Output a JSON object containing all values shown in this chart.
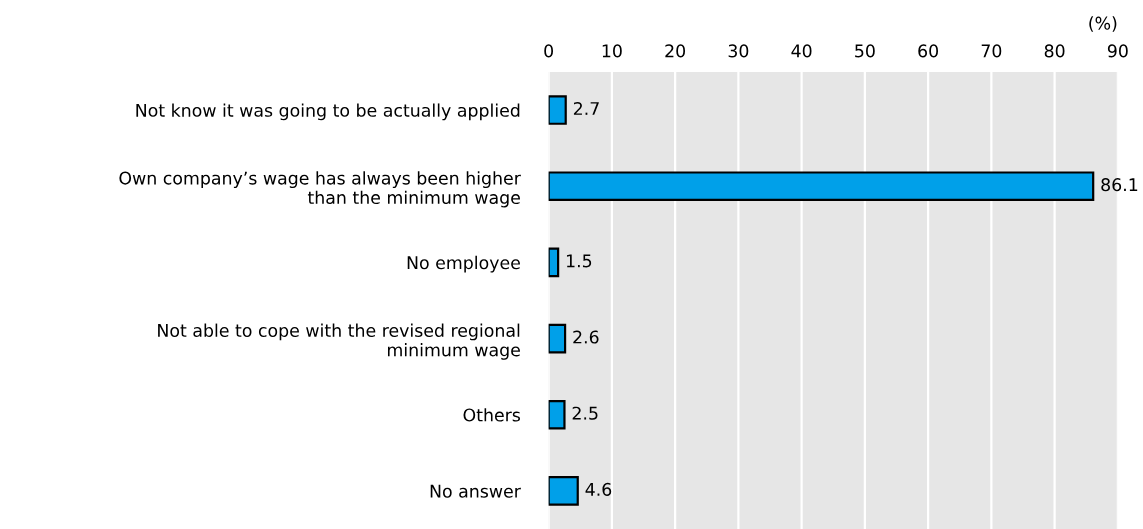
{
  "chart_data": {
    "type": "bar",
    "orientation": "horizontal",
    "xlabel": "(%)",
    "categories": [
      "Not know it was going to be actually applied",
      "Own company’s wage has always been higher\nthan the minimum wage",
      "No employee",
      "Not able to cope with the revised regional\nminimum wage",
      "Others",
      "No answer"
    ],
    "values": [
      2.7,
      86.1,
      1.5,
      2.6,
      2.5,
      4.6
    ],
    "color": "#00a0e9",
    "xlim": [
      0,
      90
    ],
    "xticks": [
      0,
      10,
      20,
      30,
      40,
      50,
      60,
      70,
      80,
      90
    ],
    "grid": "x",
    "data_labels": true,
    "legend": false
  }
}
